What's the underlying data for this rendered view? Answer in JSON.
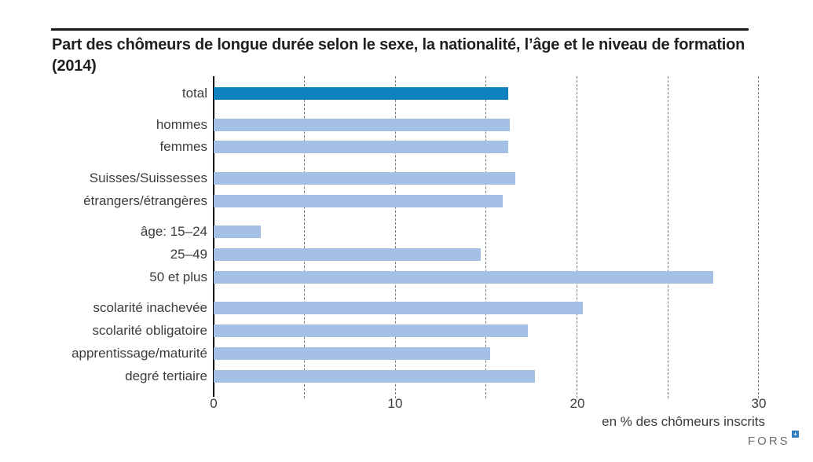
{
  "header": {
    "title": "Part des chômeurs de longue durée selon le sexe, la nationalité, l’âge et le niveau de formation (2014)"
  },
  "chart_data": {
    "type": "bar",
    "orientation": "horizontal",
    "title": "Part des chômeurs de longue durée selon le sexe, la nationalité, l’âge et le niveau de formation (2014)",
    "xlabel": "en % des chômeurs inscrits",
    "xlim": [
      0,
      30
    ],
    "xticks": [
      0,
      10,
      20,
      30
    ],
    "gridline_step": 5,
    "grid": true,
    "legend": false,
    "categories": [
      "total",
      "hommes",
      "femmes",
      "Suisses/Suissesses",
      "étrangers/étrangères",
      "âge: 15–24",
      "25–49",
      "50 et plus",
      "scolarité inachevée",
      "scolarité obligatoire",
      "apprentissage/maturité",
      "degré tertiaire"
    ],
    "values": [
      16.2,
      16.3,
      16.2,
      16.6,
      15.9,
      2.6,
      14.7,
      27.5,
      20.3,
      17.3,
      15.2,
      17.7
    ],
    "groups": [
      0,
      1,
      1,
      2,
      2,
      3,
      3,
      3,
      4,
      4,
      4,
      4
    ],
    "highlight_index": 0
  },
  "axis": {
    "unit_label": "en % des chômeurs inscrits"
  },
  "footer": {
    "logo_text": "FORS",
    "logo_mark": "+"
  },
  "colors": {
    "highlight_bar": "#0d80c0",
    "bar": "#a4c0e4",
    "grid": "#777777",
    "axis": "#000000",
    "label_text": "#3c3c3c",
    "title_text": "#1f1f1f",
    "logo_blue": "#2e7bbf",
    "logo_gray": "#6e6e6e"
  }
}
